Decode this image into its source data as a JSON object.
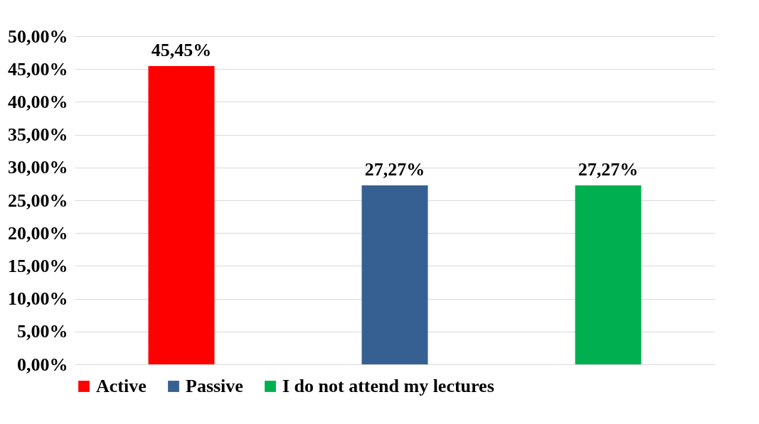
{
  "chart_data": {
    "type": "bar",
    "categories": [
      null,
      null,
      null
    ],
    "series": [
      {
        "name": "Active",
        "color": "#ff0000",
        "values": [
          45.45,
          null,
          null
        ],
        "value_labels": [
          "45,45%",
          null,
          null
        ]
      },
      {
        "name": "Passive",
        "color": "#376092",
        "values": [
          null,
          27.27,
          null
        ],
        "value_labels": [
          null,
          "27,27%",
          null
        ]
      },
      {
        "name": "I  do not attend my lectures",
        "color": "#00b050",
        "values": [
          null,
          null,
          27.27
        ],
        "value_labels": [
          null,
          null,
          "27,27%"
        ]
      }
    ],
    "ylim": [
      0,
      50
    ],
    "yticks": [
      {
        "value": 0,
        "label": "0,00%"
      },
      {
        "value": 5,
        "label": "5,00%"
      },
      {
        "value": 10,
        "label": "10,00%"
      },
      {
        "value": 15,
        "label": "15,00%"
      },
      {
        "value": 20,
        "label": "20,00%"
      },
      {
        "value": 25,
        "label": "25,00%"
      },
      {
        "value": 30,
        "label": "30,00%"
      },
      {
        "value": 35,
        "label": "35,00%"
      },
      {
        "value": 40,
        "label": "40,00%"
      },
      {
        "value": 45,
        "label": "45,00%"
      },
      {
        "value": 50,
        "label": "50,00%"
      }
    ],
    "grid": "y",
    "legend": "bottom"
  }
}
